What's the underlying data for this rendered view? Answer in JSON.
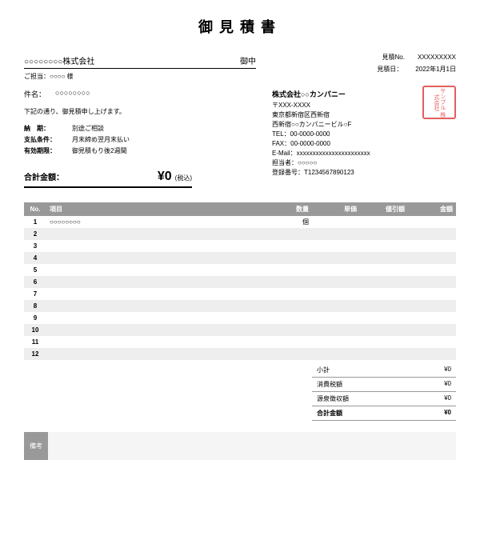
{
  "title": "御見積書",
  "client": {
    "name": "○○○○○○○○株式会社",
    "suffix": "御中",
    "contact_label": "ご担当：",
    "contact": "○○○○ 様"
  },
  "subject": {
    "label": "件名：",
    "value": "○○○○○○○○"
  },
  "intro": "下記の通り、御見積申し上げます。",
  "terms": [
    {
      "label": "納　期：",
      "value": "別途ご相談"
    },
    {
      "label": "支払条件：",
      "value": "月末締め翌月末払い"
    },
    {
      "label": "有効期限：",
      "value": "御見積もり後2週間"
    }
  ],
  "quote_info": [
    {
      "label": "見積No.",
      "value": "XXXXXXXXX"
    },
    {
      "label": "見積日：",
      "value": "2022年1月1日"
    }
  ],
  "company": {
    "name": "株式会社○○カンパニー",
    "postal": "〒XXX-XXXX",
    "addr1": "東京都新宿区西新宿",
    "addr2": "西新宿○○カンパニービル○F",
    "tel_label": "TEL：",
    "tel": "00-0000-0000",
    "fax_label": "FAX：",
    "fax": "00-0000-0000",
    "email_label": "E-Mail：",
    "email": "xxxxxxxxxxxxxxxxxxxxxxx",
    "person_label": "担当者：",
    "person": "○○○○○",
    "reg_label": "登録番号：",
    "reg": "T1234567890123"
  },
  "seal": "サンプル\n株式会社",
  "total": {
    "label": "合計金額：",
    "amount": "¥0",
    "tax_note": "(税込)"
  },
  "headers": {
    "no": "No.",
    "item": "項目",
    "qty": "数量",
    "price": "単価",
    "disc": "値引額",
    "amt": "金額"
  },
  "rows": [
    {
      "no": "1",
      "item": "○○○○○○○○",
      "qty": "個",
      "price": "",
      "disc": "",
      "amt": ""
    },
    {
      "no": "2"
    },
    {
      "no": "3"
    },
    {
      "no": "4"
    },
    {
      "no": "5"
    },
    {
      "no": "6"
    },
    {
      "no": "7"
    },
    {
      "no": "8"
    },
    {
      "no": "9"
    },
    {
      "no": "10"
    },
    {
      "no": "11"
    },
    {
      "no": "12"
    }
  ],
  "summary": [
    {
      "label": "小計",
      "value": "¥0"
    },
    {
      "label": "消費税額",
      "value": "¥0"
    },
    {
      "label": "源泉徴収額",
      "value": "¥0"
    },
    {
      "label": "合計金額",
      "value": "¥0",
      "total": true
    }
  ],
  "remarks_label": "備考",
  "colors": {
    "header_bg": "#999999",
    "stripe": "#eeeeee",
    "seal": "#dd4444"
  }
}
